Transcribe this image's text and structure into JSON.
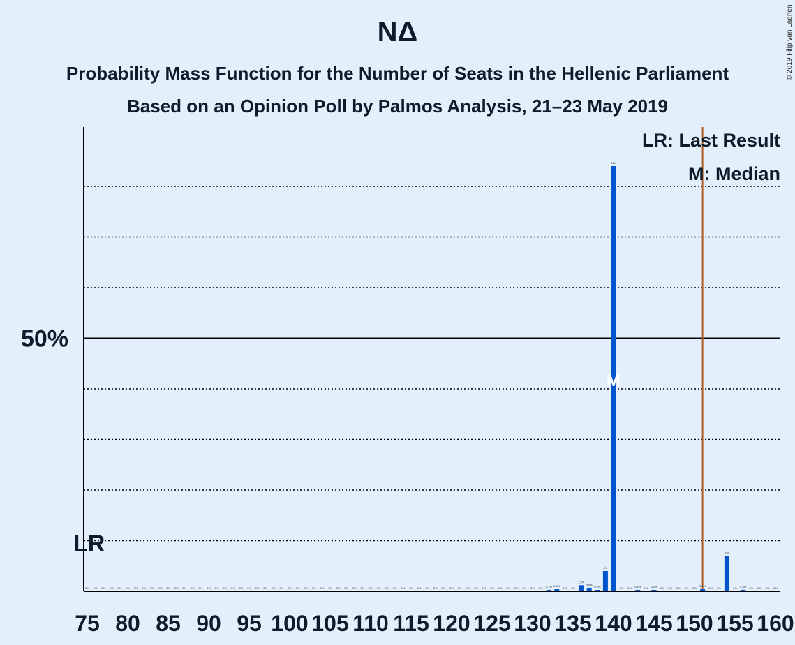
{
  "chart_data": {
    "type": "bar",
    "title": "ΝΔ",
    "subtitle": "Probability Mass Function for the Number of Seats in the Hellenic Parliament",
    "subtitle2": "Based on an Opinion Poll by Palmos Analysis, 21–23 May 2019",
    "copyright": "© 2019 Filip van Laenen",
    "legend": {
      "lr": "LR: Last Result",
      "m": "M: Median",
      "placement": "top-right"
    },
    "ytick_label": "50%",
    "lr_label": "LR",
    "median_label": "M",
    "last_result": 151,
    "median": 140,
    "xlim": [
      75,
      160
    ],
    "ylim": [
      0,
      92
    ],
    "grid": "dotted at 10% steps, solid at 50%",
    "xticks": [
      75,
      80,
      85,
      90,
      95,
      100,
      105,
      110,
      115,
      120,
      125,
      130,
      135,
      140,
      145,
      150,
      155,
      160
    ],
    "series": [
      {
        "color": "#0055cc",
        "bars": [
          {
            "x": 75,
            "y": 0,
            "label": "0%"
          },
          {
            "x": 76,
            "y": 0,
            "label": "0%"
          },
          {
            "x": 77,
            "y": 0,
            "label": "0%"
          },
          {
            "x": 78,
            "y": 0,
            "label": "0%"
          },
          {
            "x": 79,
            "y": 0,
            "label": "0%"
          },
          {
            "x": 80,
            "y": 0,
            "label": "0%"
          },
          {
            "x": 81,
            "y": 0,
            "label": "0%"
          },
          {
            "x": 82,
            "y": 0,
            "label": "0%"
          },
          {
            "x": 83,
            "y": 0,
            "label": "0%"
          },
          {
            "x": 84,
            "y": 0,
            "label": "0%"
          },
          {
            "x": 85,
            "y": 0,
            "label": "0%"
          },
          {
            "x": 86,
            "y": 0,
            "label": "0%"
          },
          {
            "x": 87,
            "y": 0,
            "label": "0%"
          },
          {
            "x": 88,
            "y": 0,
            "label": "0%"
          },
          {
            "x": 89,
            "y": 0,
            "label": "0%"
          },
          {
            "x": 90,
            "y": 0,
            "label": "0%"
          },
          {
            "x": 91,
            "y": 0,
            "label": "0%"
          },
          {
            "x": 92,
            "y": 0,
            "label": "0%"
          },
          {
            "x": 93,
            "y": 0,
            "label": "0%"
          },
          {
            "x": 94,
            "y": 0,
            "label": "0%"
          },
          {
            "x": 95,
            "y": 0,
            "label": "0%"
          },
          {
            "x": 96,
            "y": 0,
            "label": "0%"
          },
          {
            "x": 97,
            "y": 0,
            "label": "0%"
          },
          {
            "x": 98,
            "y": 0,
            "label": "0%"
          },
          {
            "x": 99,
            "y": 0,
            "label": "0%"
          },
          {
            "x": 100,
            "y": 0,
            "label": "0%"
          },
          {
            "x": 101,
            "y": 0,
            "label": "0%"
          },
          {
            "x": 102,
            "y": 0,
            "label": "0%"
          },
          {
            "x": 103,
            "y": 0,
            "label": "0%"
          },
          {
            "x": 104,
            "y": 0,
            "label": "0%"
          },
          {
            "x": 105,
            "y": 0,
            "label": "0%"
          },
          {
            "x": 106,
            "y": 0,
            "label": "0%"
          },
          {
            "x": 107,
            "y": 0,
            "label": "0%"
          },
          {
            "x": 108,
            "y": 0,
            "label": "0%"
          },
          {
            "x": 109,
            "y": 0,
            "label": "0%"
          },
          {
            "x": 110,
            "y": 0,
            "label": "0%"
          },
          {
            "x": 111,
            "y": 0,
            "label": "0%"
          },
          {
            "x": 112,
            "y": 0,
            "label": "0%"
          },
          {
            "x": 113,
            "y": 0,
            "label": "0%"
          },
          {
            "x": 114,
            "y": 0,
            "label": "0%"
          },
          {
            "x": 115,
            "y": 0,
            "label": "0%"
          },
          {
            "x": 116,
            "y": 0,
            "label": "0%"
          },
          {
            "x": 117,
            "y": 0,
            "label": "0%"
          },
          {
            "x": 118,
            "y": 0,
            "label": "0%"
          },
          {
            "x": 119,
            "y": 0,
            "label": "0%"
          },
          {
            "x": 120,
            "y": 0,
            "label": "0%"
          },
          {
            "x": 121,
            "y": 0,
            "label": "0%"
          },
          {
            "x": 122,
            "y": 0,
            "label": "0%"
          },
          {
            "x": 123,
            "y": 0,
            "label": "0%"
          },
          {
            "x": 124,
            "y": 0,
            "label": "0%"
          },
          {
            "x": 125,
            "y": 0,
            "label": "0%"
          },
          {
            "x": 126,
            "y": 0,
            "label": "0%"
          },
          {
            "x": 127,
            "y": 0,
            "label": "0%"
          },
          {
            "x": 128,
            "y": 0,
            "label": "0%"
          },
          {
            "x": 129,
            "y": 0,
            "label": "0%"
          },
          {
            "x": 130,
            "y": 0,
            "label": "0%"
          },
          {
            "x": 131,
            "y": 0,
            "label": "0%"
          },
          {
            "x": 132,
            "y": 0.1,
            "label": "0.1%"
          },
          {
            "x": 133,
            "y": 0.4,
            "label": "0.4%"
          },
          {
            "x": 134,
            "y": 0,
            "label": "0%"
          },
          {
            "x": 135,
            "y": 0,
            "label": "0%"
          },
          {
            "x": 136,
            "y": 1.2,
            "label": "1.2%"
          },
          {
            "x": 137,
            "y": 0.6,
            "label": "0.6%"
          },
          {
            "x": 138,
            "y": 0.2,
            "label": "0.2%"
          },
          {
            "x": 139,
            "y": 4,
            "label": "4%"
          },
          {
            "x": 140,
            "y": 84,
            "label": "84%"
          },
          {
            "x": 141,
            "y": 0,
            "label": "0%"
          },
          {
            "x": 142,
            "y": 0,
            "label": "0%"
          },
          {
            "x": 143,
            "y": 0.1,
            "label": "0.1%"
          },
          {
            "x": 144,
            "y": 0,
            "label": "0%"
          },
          {
            "x": 145,
            "y": 0.1,
            "label": "0.1%"
          },
          {
            "x": 146,
            "y": 0,
            "label": "0%"
          },
          {
            "x": 147,
            "y": 0,
            "label": "0%"
          },
          {
            "x": 148,
            "y": 0,
            "label": "0%"
          },
          {
            "x": 149,
            "y": 0,
            "label": "0%"
          },
          {
            "x": 150,
            "y": 0,
            "label": "0%"
          },
          {
            "x": 151,
            "y": 0.4,
            "label": "0.4%"
          },
          {
            "x": 152,
            "y": 0,
            "label": "0%"
          },
          {
            "x": 153,
            "y": 0,
            "label": "0%"
          },
          {
            "x": 154,
            "y": 7,
            "label": "7%"
          },
          {
            "x": 155,
            "y": 0,
            "label": "0%"
          },
          {
            "x": 156,
            "y": 0.3,
            "label": "0.3%"
          },
          {
            "x": 157,
            "y": 0,
            "label": "0%"
          },
          {
            "x": 158,
            "y": 0,
            "label": "0%"
          },
          {
            "x": 159,
            "y": 0,
            "label": "0%"
          },
          {
            "x": 160,
            "y": 0,
            "label": "0%"
          }
        ]
      }
    ],
    "colors": {
      "bar": "#0055cc",
      "last_result_line": "#b05a20",
      "background": "#e3f0fc",
      "axis": "#000000"
    }
  }
}
